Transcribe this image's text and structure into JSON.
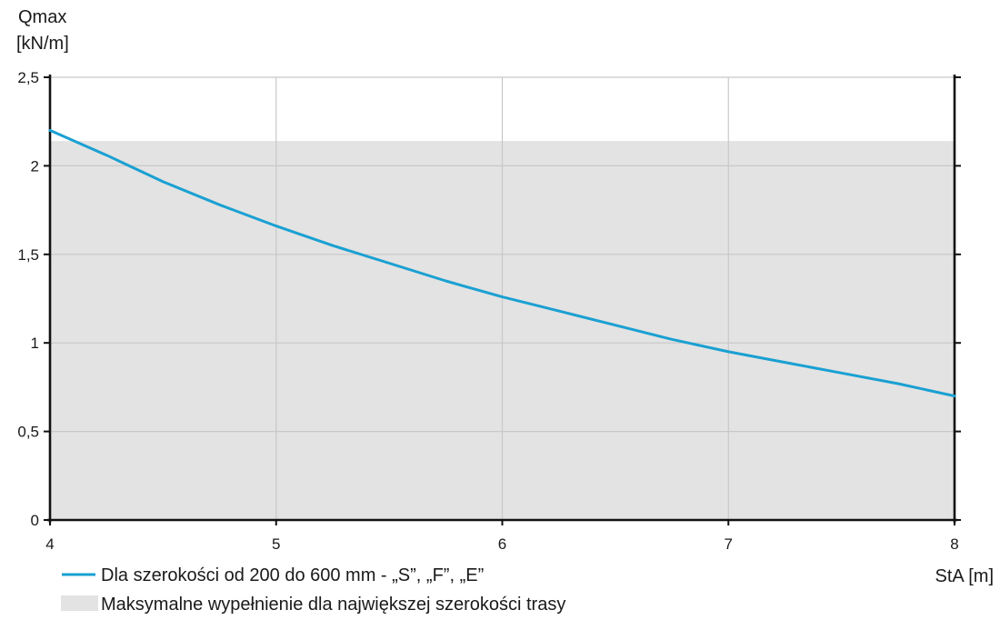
{
  "chart_data": {
    "type": "line",
    "ylabel_line1": "Qmax",
    "ylabel_line2": "[kN/m]",
    "xlabel": "StA [m]",
    "xlim": [
      4,
      8
    ],
    "ylim": [
      0,
      2.5
    ],
    "x_ticks": [
      {
        "value": 4,
        "label": "4"
      },
      {
        "value": 5,
        "label": "5"
      },
      {
        "value": 6,
        "label": "6"
      },
      {
        "value": 7,
        "label": "7"
      },
      {
        "value": 8,
        "label": "8"
      }
    ],
    "y_ticks": [
      {
        "value": 0,
        "label": "0"
      },
      {
        "value": 0.5,
        "label": "0,5"
      },
      {
        "value": 1,
        "label": "1"
      },
      {
        "value": 1.5,
        "label": "1,5"
      },
      {
        "value": 2,
        "label": "2"
      },
      {
        "value": 2.5,
        "label": "2,5"
      }
    ],
    "grid": true,
    "series": [
      {
        "name": "Dla szerokości od 200 do 600 mm - „S”, „F”, „E”",
        "color": "#1aa0d2",
        "x": [
          4,
          4.25,
          4.5,
          4.75,
          5,
          5.25,
          5.5,
          5.75,
          6,
          6.25,
          6.5,
          6.75,
          7,
          7.25,
          7.5,
          7.75,
          8
        ],
        "y": [
          2.2,
          2.06,
          1.91,
          1.78,
          1.66,
          1.55,
          1.45,
          1.35,
          1.26,
          1.18,
          1.1,
          1.02,
          0.95,
          0.89,
          0.83,
          0.77,
          0.7
        ]
      }
    ],
    "band": {
      "name": "Maksymalne wypełnienie dla największej szerokości trasy",
      "y_max": 2.14,
      "color": "#e3e3e3"
    },
    "legend_position": "bottom-left"
  }
}
